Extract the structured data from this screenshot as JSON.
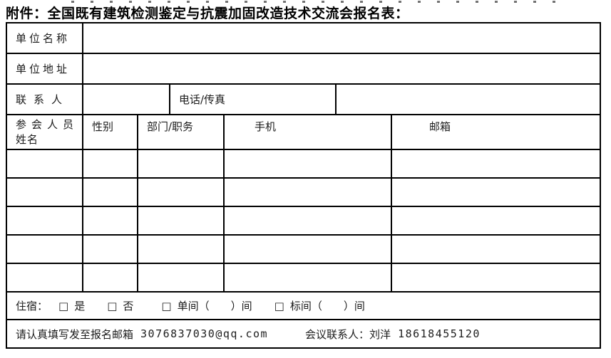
{
  "page": {
    "title": "附件：全国既有建筑检测鉴定与抗震加固改造技术交流会报名表："
  },
  "table": {
    "unit_name_label": "单位名称",
    "unit_address_label": "单位地址",
    "contact_label": "联系人",
    "phone_fax_label": "电话/传真",
    "attendee_header_line1": "参会人员",
    "attendee_header_line2": "姓名",
    "gender_header": "性别",
    "dept_header": "部门/职务",
    "mobile_header": "手机",
    "email_header": "邮箱",
    "empty_attendee_rows": 5
  },
  "lodging": {
    "prefix": "住宿：",
    "checkbox_glyph": "□",
    "options": [
      {
        "label": "是"
      },
      {
        "label": "否"
      },
      {
        "label": "单间（　　）间"
      },
      {
        "label": "标间（　　）间"
      }
    ]
  },
  "footer": {
    "note": "请认真填写发至报名邮箱",
    "email": "3076837030@qq.com",
    "contact": "会议联系人：刘洋",
    "phone": "18618455120"
  }
}
